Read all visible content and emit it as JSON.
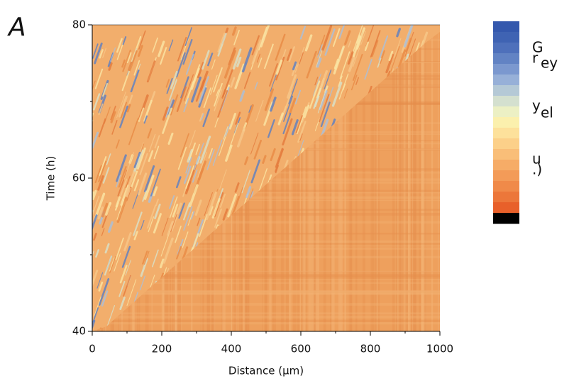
{
  "chart_data": {
    "type": "heatmap",
    "panel_label": "A",
    "x_label": "Distance (µm)",
    "y_label": "Time (h)",
    "xlim": [
      0,
      1000
    ],
    "xticks": [
      0,
      200,
      400,
      600,
      800,
      1000
    ],
    "xminor": [
      100,
      300,
      500,
      700,
      900
    ],
    "ylim": [
      40,
      80
    ],
    "yticks": [
      40,
      60,
      80
    ],
    "yminor": [
      50,
      70
    ],
    "colorbar_colors": [
      "#3458ad",
      "#3f63b3",
      "#4e70bb",
      "#6283c4",
      "#7b98cf",
      "#97b0d8",
      "#b5c9d6",
      "#d4e0cf",
      "#ecf0c4",
      "#fbf0ad",
      "#fde19b",
      "#fcd089",
      "#f9be78",
      "#f6ac67",
      "#f39b58",
      "#f08a49",
      "#ec773a",
      "#e8602a",
      "#000000"
    ],
    "colorbar_label": [
      "G",
      "r",
      "ey",
      "y",
      "el",
      "u",
      ".)"
    ]
  }
}
